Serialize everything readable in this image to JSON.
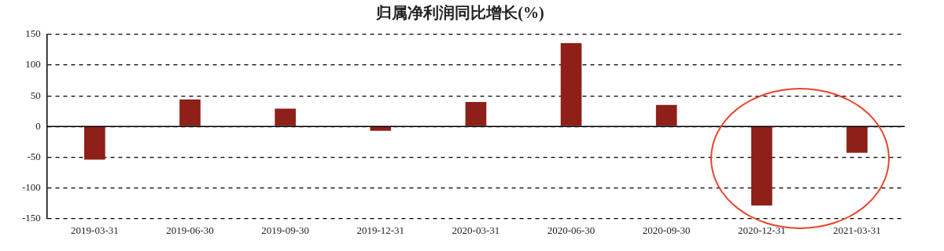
{
  "chart_data": {
    "type": "bar",
    "title": "归属净利润同比增长(%)",
    "categories": [
      "2019-03-31",
      "2019-06-30",
      "2019-09-30",
      "2019-12-31",
      "2020-03-31",
      "2020-06-30",
      "2020-09-30",
      "2020-12-31",
      "2021-03-31"
    ],
    "values": [
      -54,
      44,
      29,
      -7,
      40,
      136,
      35,
      -129,
      -43
    ],
    "color": "#8e2019",
    "ylim": [
      -150,
      150
    ],
    "yticks": [
      -150,
      -100,
      -50,
      0,
      50,
      100,
      150
    ],
    "grid": "y"
  }
}
